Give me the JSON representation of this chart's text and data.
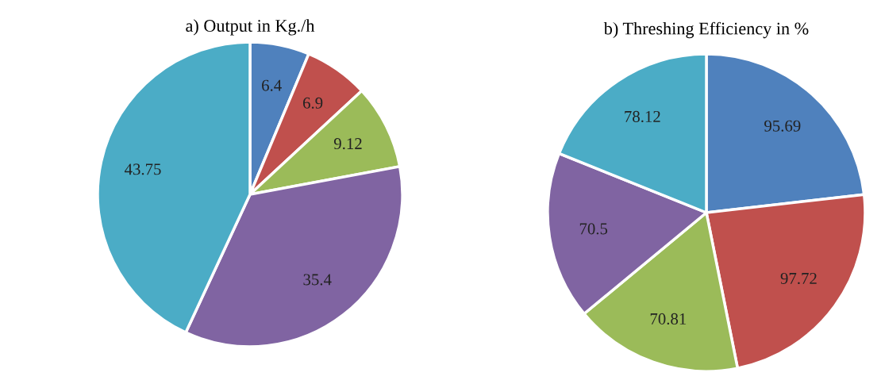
{
  "chart_data": [
    {
      "type": "pie",
      "title": "a) Output in Kg./h",
      "categories": [
        null,
        null,
        null,
        null,
        null
      ],
      "values": [
        6.4,
        6.9,
        9.12,
        35.4,
        43.75
      ],
      "colors": [
        "#4f81bd",
        "#c0504d",
        "#9bbb59",
        "#8064a2",
        "#4bacc6"
      ],
      "data_labels": true
    },
    {
      "type": "pie",
      "title": "b) Threshing Efficiency in %",
      "categories": [
        null,
        null,
        null,
        null,
        null
      ],
      "values": [
        95.69,
        97.72,
        70.81,
        70.5,
        78.12
      ],
      "colors": [
        "#4f81bd",
        "#c0504d",
        "#9bbb59",
        "#8064a2",
        "#4bacc6"
      ],
      "data_labels": true
    }
  ]
}
